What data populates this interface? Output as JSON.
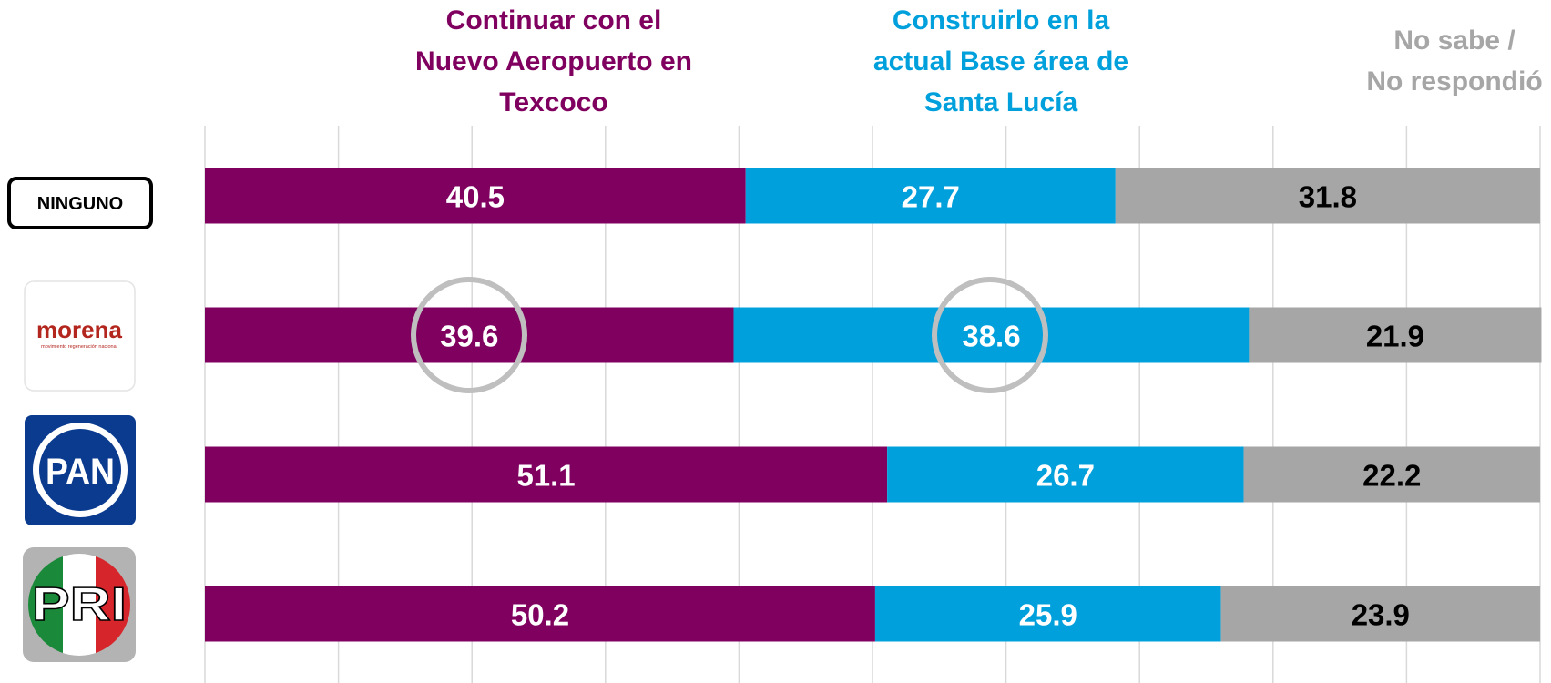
{
  "chart_data": {
    "type": "stacked_bar_horizontal",
    "categories": [
      "NINGUNO",
      "morena",
      "PAN",
      "PRI"
    ],
    "category_subtitle": "movimiento regeneración nacional",
    "series": [
      {
        "name": "Continuar con el\nNuevo Aeropuerto en\nTexcoco",
        "color": "#800060",
        "label_color": "#ffffff",
        "values": [
          40.5,
          39.6,
          51.1,
          50.2
        ]
      },
      {
        "name": "Construirlo en la\nactual Base área de\nSanta Lucía",
        "color": "#00a0dc",
        "label_color": "#ffffff",
        "values": [
          27.7,
          38.6,
          26.7,
          25.9
        ]
      },
      {
        "name": "No sabe /\nNo respondió",
        "color": "#a6a6a6",
        "label_color": "#000000",
        "values": [
          31.8,
          21.9,
          22.2,
          23.9
        ]
      }
    ],
    "xlim": [
      0,
      100
    ],
    "xticks": [
      0,
      10,
      20,
      30,
      40,
      50,
      60,
      70,
      80,
      90,
      100
    ],
    "grid": true
  }
}
